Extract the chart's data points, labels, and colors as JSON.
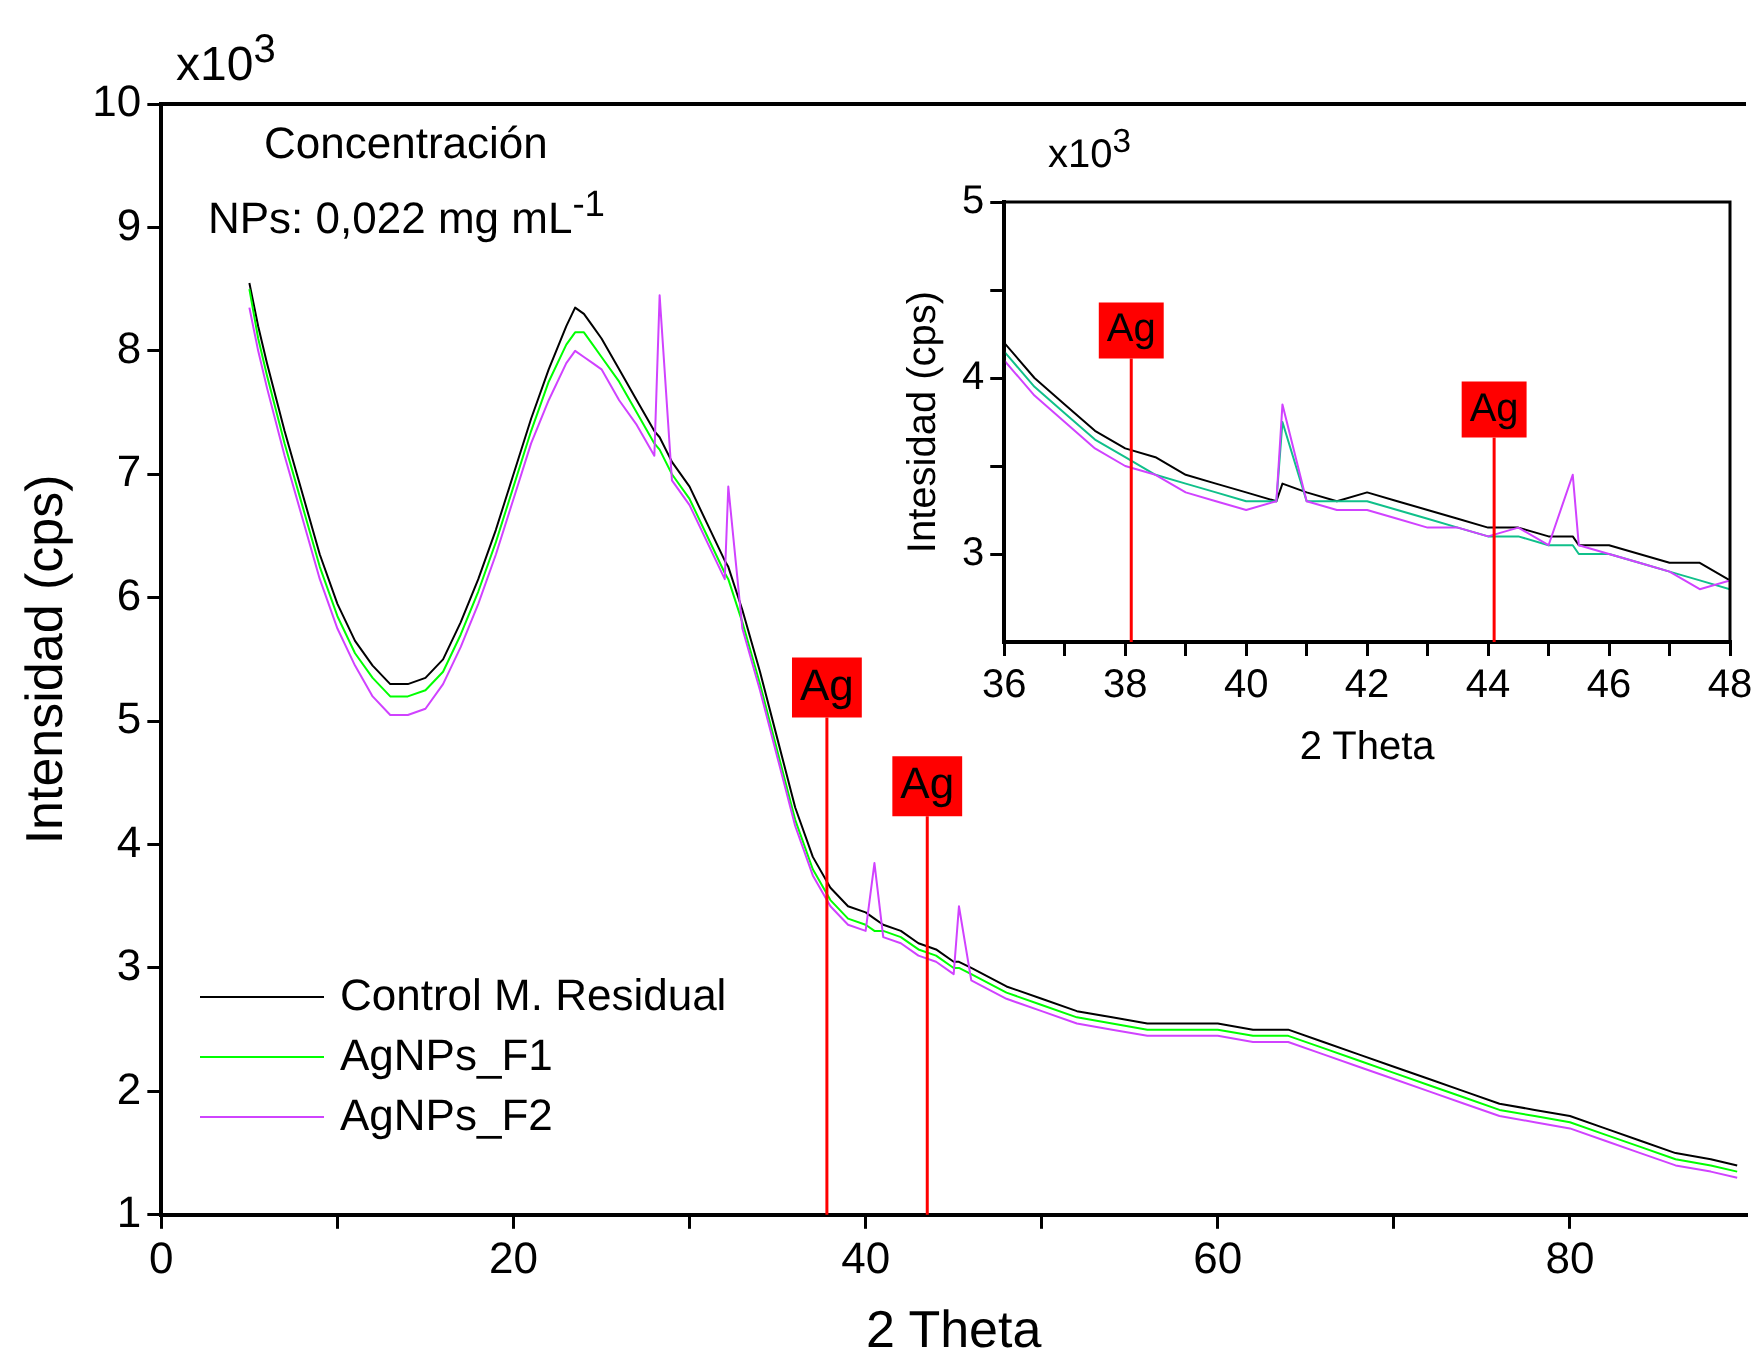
{
  "chart_data": [
    {
      "type": "line",
      "xlabel": "2 Theta",
      "ylabel": "Intensidad (cps)",
      "annotations": [
        "x10$^{3}$",
        "Concentración",
        "NPs: 0,022 mg mL$^{-1}$"
      ],
      "x": [
        5,
        5.5,
        6,
        7,
        8,
        9,
        10,
        11,
        12,
        13,
        14,
        15,
        16,
        17,
        18,
        19,
        20,
        21,
        22,
        23,
        23.5,
        24,
        24.5,
        25,
        26,
        27,
        28,
        28.3,
        29,
        30,
        31,
        32,
        32.2,
        33,
        34,
        35,
        36,
        37,
        38,
        39,
        40,
        40.5,
        41,
        42,
        43,
        44,
        45,
        45.3,
        46,
        48,
        50,
        52,
        54,
        56,
        58,
        60,
        62,
        64,
        66,
        68,
        70,
        72,
        74,
        76,
        78,
        80,
        82,
        84,
        86,
        88,
        89.5
      ],
      "series": [
        {
          "name": "Control M. Residual",
          "color": "#000000",
          "values": [
            8.55,
            8.2,
            7.9,
            7.35,
            6.85,
            6.35,
            5.95,
            5.65,
            5.45,
            5.3,
            5.3,
            5.35,
            5.5,
            5.8,
            6.15,
            6.55,
            7.0,
            7.45,
            7.85,
            8.2,
            8.35,
            8.3,
            8.2,
            8.1,
            7.85,
            7.6,
            7.35,
            7.3,
            7.1,
            6.9,
            6.6,
            6.3,
            6.25,
            5.9,
            5.4,
            4.85,
            4.3,
            3.9,
            3.65,
            3.5,
            3.45,
            3.4,
            3.35,
            3.3,
            3.2,
            3.15,
            3.05,
            3.05,
            3.0,
            2.85,
            2.75,
            2.65,
            2.6,
            2.55,
            2.55,
            2.55,
            2.5,
            2.5,
            2.4,
            2.3,
            2.2,
            2.1,
            2.0,
            1.9,
            1.85,
            1.8,
            1.7,
            1.6,
            1.5,
            1.45,
            1.4
          ]
        },
        {
          "name": "AgNPs_F1",
          "color": "#00ff00",
          "values": [
            8.5,
            8.1,
            7.8,
            7.25,
            6.75,
            6.25,
            5.85,
            5.55,
            5.35,
            5.2,
            5.2,
            5.25,
            5.4,
            5.7,
            6.05,
            6.45,
            6.9,
            7.35,
            7.75,
            8.05,
            8.15,
            8.15,
            8.05,
            7.95,
            7.75,
            7.5,
            7.25,
            7.2,
            7.0,
            6.8,
            6.5,
            6.2,
            6.15,
            5.8,
            5.3,
            4.75,
            4.2,
            3.8,
            3.55,
            3.4,
            3.35,
            3.3,
            3.3,
            3.25,
            3.15,
            3.1,
            3.0,
            3.0,
            2.95,
            2.8,
            2.7,
            2.6,
            2.55,
            2.5,
            2.5,
            2.5,
            2.45,
            2.45,
            2.35,
            2.25,
            2.15,
            2.05,
            1.95,
            1.85,
            1.8,
            1.75,
            1.65,
            1.55,
            1.45,
            1.4,
            1.35
          ]
        },
        {
          "name": "AgNPs_F2",
          "color": "#d042ff",
          "values": [
            8.35,
            8.0,
            7.7,
            7.15,
            6.65,
            6.15,
            5.75,
            5.45,
            5.2,
            5.05,
            5.05,
            5.1,
            5.3,
            5.6,
            5.95,
            6.35,
            6.8,
            7.25,
            7.6,
            7.9,
            8.0,
            7.95,
            7.9,
            7.85,
            7.6,
            7.4,
            7.15,
            8.45,
            6.95,
            6.75,
            6.45,
            6.15,
            6.9,
            5.75,
            5.25,
            4.7,
            4.15,
            3.75,
            3.5,
            3.35,
            3.3,
            3.85,
            3.25,
            3.2,
            3.1,
            3.05,
            2.95,
            3.5,
            2.9,
            2.75,
            2.65,
            2.55,
            2.5,
            2.45,
            2.45,
            2.45,
            2.4,
            2.4,
            2.3,
            2.2,
            2.1,
            2.0,
            1.9,
            1.8,
            1.75,
            1.7,
            1.6,
            1.5,
            1.4,
            1.35,
            1.3
          ]
        }
      ],
      "xlim": [
        0,
        90
      ],
      "xticks": [
        0,
        {
          "value": 10,
          "label": null
        },
        20,
        {
          "value": 30,
          "label": null
        },
        40,
        {
          "value": 50,
          "label": null
        },
        60,
        {
          "value": 70,
          "label": null
        },
        80
      ],
      "ylim": [
        1,
        10
      ],
      "yticks": [
        1,
        2,
        3,
        4,
        5,
        6,
        7,
        8,
        9,
        10
      ],
      "ref_lines": [
        {
          "axis": "x",
          "value": 37.8,
          "label": "Ag",
          "color": "#ff0000"
        },
        {
          "axis": "x",
          "value": 43.5,
          "label": "Ag",
          "color": "#ff0000"
        }
      ],
      "legend": "bottom left",
      "grid": false,
      "marker": "none",
      "line_style": "solid"
    },
    {
      "type": "line",
      "xlabel": "2 Theta",
      "ylabel": "Intesidad (cps)",
      "annotations": [
        "x10$^{3}$"
      ],
      "x": [
        36,
        36.5,
        37,
        37.5,
        38,
        38.5,
        39,
        39.5,
        40,
        40.5,
        40.6,
        41,
        41.5,
        42,
        42.5,
        43,
        43.5,
        44,
        44.5,
        45,
        45.4,
        45.5,
        46,
        46.5,
        47,
        47.5,
        48
      ],
      "series": [
        {
          "color": "#000000",
          "values": [
            4.2,
            4.0,
            3.85,
            3.7,
            3.6,
            3.55,
            3.45,
            3.4,
            3.35,
            3.3,
            3.4,
            3.35,
            3.3,
            3.35,
            3.3,
            3.25,
            3.2,
            3.15,
            3.15,
            3.1,
            3.1,
            3.05,
            3.05,
            3.0,
            2.95,
            2.95,
            2.85
          ]
        },
        {
          "color": "#10c08a",
          "values": [
            4.15,
            3.95,
            3.8,
            3.65,
            3.55,
            3.45,
            3.4,
            3.35,
            3.3,
            3.3,
            3.75,
            3.3,
            3.3,
            3.3,
            3.25,
            3.2,
            3.15,
            3.1,
            3.1,
            3.05,
            3.05,
            3.0,
            3.0,
            2.95,
            2.9,
            2.85,
            2.8
          ]
        },
        {
          "color": "#d042ff",
          "values": [
            4.1,
            3.9,
            3.75,
            3.6,
            3.5,
            3.45,
            3.35,
            3.3,
            3.25,
            3.3,
            3.85,
            3.3,
            3.25,
            3.25,
            3.2,
            3.15,
            3.15,
            3.1,
            3.15,
            3.05,
            3.45,
            3.05,
            3.0,
            2.95,
            2.9,
            2.8,
            2.85
          ]
        }
      ],
      "xlim": [
        36,
        48
      ],
      "xticks": [
        36,
        {
          "value": 37,
          "label": null
        },
        38,
        {
          "value": 39,
          "label": null
        },
        40,
        {
          "value": 41,
          "label": null
        },
        42,
        {
          "value": 43,
          "label": null
        },
        44,
        {
          "value": 45,
          "label": null
        },
        46,
        {
          "value": 47,
          "label": null
        },
        48
      ],
      "ylim": [
        2.5,
        5
      ],
      "yticks": [
        3,
        {
          "value": 3.5,
          "label": null
        },
        4,
        {
          "value": 4.5,
          "label": null
        },
        5
      ],
      "ref_lines": [
        {
          "axis": "x",
          "value": 38.1,
          "label": "Ag",
          "color": "#ff0000"
        },
        {
          "axis": "x",
          "value": 44.1,
          "label": "Ag",
          "color": "#ff0000"
        }
      ],
      "grid": false,
      "marker": "none",
      "line_style": "solid"
    }
  ]
}
